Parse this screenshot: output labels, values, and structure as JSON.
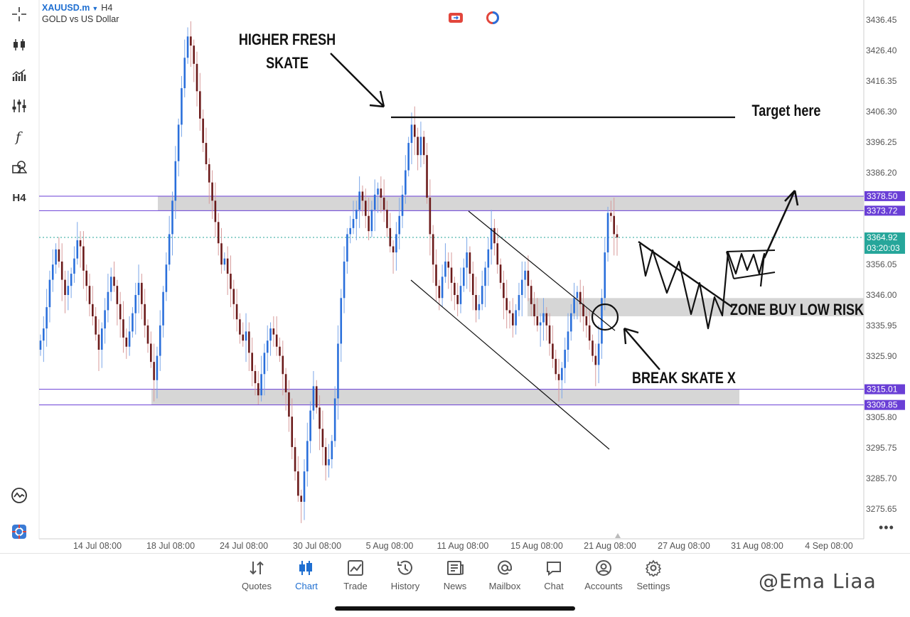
{
  "symbol": {
    "name": "XAUUSD.m",
    "timeframe": "H4",
    "description": "GOLD vs US Dollar"
  },
  "toolbar": {
    "timeframe_label": "H4"
  },
  "chart_data": {
    "type": "candlestick",
    "y_ticks": [
      "3436.45",
      "3426.40",
      "3416.35",
      "3406.30",
      "3396.25",
      "3386.20",
      "3356.05",
      "3346.00",
      "3335.95",
      "3325.90",
      "3305.80",
      "3295.75",
      "3285.70",
      "3275.65"
    ],
    "x_ticks": [
      "14 Jul 08:00",
      "18 Jul 08:00",
      "24 Jul 08:00",
      "30 Jul 08:00",
      "5 Aug 08:00",
      "11 Aug 08:00",
      "15 Aug 08:00",
      "21 Aug 08:00",
      "27 Aug 08:00",
      "31 Aug 08:00",
      "4 Sep 08:00"
    ],
    "price_labels": [
      {
        "value": 3378.5,
        "text": "3378.50",
        "kind": "level"
      },
      {
        "value": 3373.72,
        "text": "3373.72",
        "kind": "level"
      },
      {
        "value": 3364.92,
        "text": "3364.92",
        "kind": "current"
      },
      {
        "value": 3315.01,
        "text": "3315.01",
        "kind": "level"
      },
      {
        "value": 3309.85,
        "text": "3309.85",
        "kind": "level"
      }
    ],
    "countdown": "03:20:03",
    "zones": [
      {
        "from": 3373.72,
        "to": 3378.5
      },
      {
        "from": 3309.85,
        "to": 3315.01
      },
      {
        "from": 3339.0,
        "to": 3345.0
      }
    ],
    "annotations": [
      "HIGHER FRESH",
      "SKATE",
      "Target here",
      "ZONE BUY LOW RISK",
      "BREAK SKATE X"
    ],
    "ylim": [
      3270.0,
      3440.0
    ],
    "colors": {
      "up": "#2a6fdb",
      "down": "#6b1a1a",
      "zone": "#d6d6d6",
      "level_line": "#6a3fd6",
      "current": "#26a69a",
      "ink": "#111111"
    },
    "candles_close": [
      3331,
      3335,
      3342,
      3351,
      3356,
      3361,
      3357,
      3351,
      3346,
      3349,
      3353,
      3358,
      3364,
      3362,
      3354,
      3349,
      3343,
      3339,
      3333,
      3328,
      3335,
      3341,
      3347,
      3352,
      3349,
      3343,
      3338,
      3332,
      3329,
      3334,
      3340,
      3346,
      3350,
      3343,
      3336,
      3330,
      3324,
      3318,
      3326,
      3336,
      3347,
      3356,
      3366,
      3377,
      3390,
      3402,
      3414,
      3424,
      3431,
      3428,
      3422,
      3413,
      3404,
      3396,
      3389,
      3383,
      3377,
      3370,
      3363,
      3356,
      3358,
      3353,
      3348,
      3343,
      3338,
      3333,
      3331,
      3334,
      3327,
      3321,
      3317,
      3313,
      3320,
      3327,
      3331,
      3335,
      3333,
      3329,
      3326,
      3320,
      3314,
      3306,
      3296,
      3288,
      3280,
      3278,
      3288,
      3298,
      3308,
      3316,
      3309,
      3302,
      3296,
      3290,
      3292,
      3298,
      3312,
      3330,
      3345,
      3357,
      3366,
      3368,
      3371,
      3374,
      3380,
      3377,
      3372,
      3367,
      3374,
      3379,
      3381,
      3378,
      3374,
      3368,
      3362,
      3360,
      3366,
      3372,
      3379,
      3387,
      3396,
      3402,
      3398,
      3392,
      3398,
      3392,
      3378,
      3366,
      3356,
      3349,
      3345,
      3352,
      3357,
      3355,
      3350,
      3346,
      3343,
      3349,
      3355,
      3360,
      3353,
      3346,
      3341,
      3343,
      3349,
      3355,
      3361,
      3368,
      3363,
      3356,
      3350,
      3345,
      3341,
      3340,
      3336,
      3341,
      3346,
      3351,
      3354,
      3349,
      3343,
      3339,
      3336,
      3337,
      3340,
      3336,
      3330,
      3325,
      3320,
      3318,
      3322,
      3328,
      3334,
      3340,
      3345,
      3347,
      3343,
      3339,
      3336,
      3331,
      3326,
      3323,
      3330,
      3345,
      3360,
      3373,
      3372,
      3366,
      3364.92
    ]
  },
  "nav": [
    {
      "label": "Quotes",
      "icon": "quotes-icon"
    },
    {
      "label": "Chart",
      "icon": "chart-icon"
    },
    {
      "label": "Trade",
      "icon": "trade-icon"
    },
    {
      "label": "History",
      "icon": "history-icon"
    },
    {
      "label": "News",
      "icon": "news-icon"
    },
    {
      "label": "Mailbox",
      "icon": "mailbox-icon"
    },
    {
      "label": "Chat",
      "icon": "chat-icon"
    },
    {
      "label": "Accounts",
      "icon": "accounts-icon"
    },
    {
      "label": "Settings",
      "icon": "settings-icon"
    }
  ],
  "active_nav": "Chart",
  "watermark": "@Ema Liaa"
}
